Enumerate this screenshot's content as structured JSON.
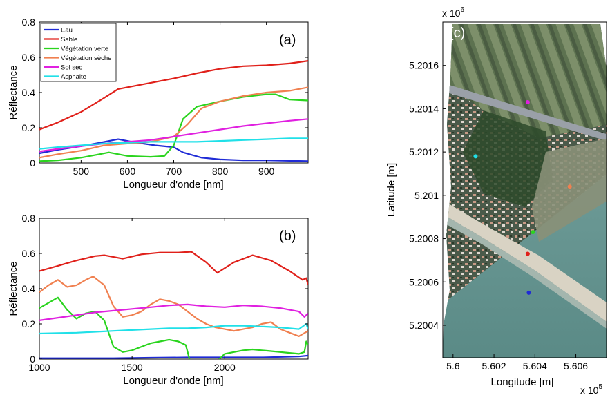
{
  "chart_data": [
    {
      "type": "line",
      "panel_tag": "(a)",
      "xlabel": "Longueur d'onde [nm]",
      "ylabel": "Réflectance",
      "xlim": [
        410,
        990
      ],
      "ylim": [
        0,
        0.8
      ],
      "xticks": [
        500,
        600,
        700,
        800,
        900
      ],
      "yticks": [
        0,
        0.2,
        0.4,
        0.6,
        0.8
      ],
      "legend_position": "top-left",
      "series": [
        {
          "name": "Eau",
          "color": "#1f2bd6",
          "x": [
            410,
            450,
            500,
            550,
            580,
            620,
            660,
            700,
            720,
            760,
            800,
            850,
            900,
            950,
            990
          ],
          "y": [
            0.055,
            0.075,
            0.095,
            0.12,
            0.135,
            0.115,
            0.1,
            0.09,
            0.06,
            0.03,
            0.02,
            0.015,
            0.015,
            0.012,
            0.01
          ]
        },
        {
          "name": "Sable",
          "color": "#e0201a",
          "x": [
            410,
            450,
            500,
            550,
            580,
            620,
            660,
            700,
            750,
            800,
            850,
            900,
            950,
            990
          ],
          "y": [
            0.19,
            0.23,
            0.29,
            0.37,
            0.42,
            0.44,
            0.46,
            0.48,
            0.51,
            0.535,
            0.55,
            0.555,
            0.565,
            0.58
          ]
        },
        {
          "name": "Végétation verte",
          "color": "#2ad41e",
          "x": [
            410,
            450,
            500,
            540,
            560,
            600,
            650,
            680,
            700,
            720,
            750,
            800,
            850,
            900,
            920,
            950,
            990
          ],
          "y": [
            0.01,
            0.015,
            0.03,
            0.05,
            0.06,
            0.04,
            0.035,
            0.04,
            0.1,
            0.25,
            0.32,
            0.35,
            0.375,
            0.39,
            0.39,
            0.36,
            0.355
          ]
        },
        {
          "name": "Végétation sèche",
          "color": "#f08050",
          "x": [
            410,
            450,
            500,
            550,
            600,
            650,
            700,
            730,
            760,
            800,
            850,
            900,
            950,
            990
          ],
          "y": [
            0.03,
            0.05,
            0.07,
            0.1,
            0.11,
            0.12,
            0.15,
            0.22,
            0.31,
            0.35,
            0.38,
            0.4,
            0.41,
            0.43
          ]
        },
        {
          "name": "Sol sec",
          "color": "#e020e0",
          "x": [
            410,
            450,
            500,
            550,
            600,
            650,
            700,
            750,
            800,
            850,
            900,
            950,
            990
          ],
          "y": [
            0.065,
            0.08,
            0.095,
            0.11,
            0.12,
            0.13,
            0.15,
            0.17,
            0.19,
            0.21,
            0.225,
            0.24,
            0.25
          ]
        },
        {
          "name": "Asphalte",
          "color": "#20e0e8",
          "x": [
            410,
            450,
            500,
            550,
            600,
            650,
            700,
            750,
            800,
            850,
            900,
            950,
            990
          ],
          "y": [
            0.08,
            0.09,
            0.1,
            0.11,
            0.115,
            0.12,
            0.12,
            0.12,
            0.125,
            0.13,
            0.135,
            0.14,
            0.14
          ]
        }
      ]
    },
    {
      "type": "line",
      "panel_tag": "(b)",
      "xlabel": "Longueur d'onde [nm]",
      "ylabel": "Réflectance",
      "xlim": [
        1000,
        2450
      ],
      "ylim": [
        0,
        0.8
      ],
      "xticks": [
        1000,
        1500,
        2000
      ],
      "yticks": [
        0,
        0.2,
        0.4,
        0.6,
        0.8
      ],
      "series": [
        {
          "name": "Eau",
          "color": "#1f2bd6",
          "x": [
            1000,
            1200,
            1400,
            1600,
            1800,
            2000,
            2200,
            2400,
            2450
          ],
          "y": [
            0.005,
            0.005,
            0.005,
            0.008,
            0.01,
            0.01,
            0.01,
            0.015,
            0.02
          ]
        },
        {
          "name": "Sable",
          "color": "#e0201a",
          "x": [
            1000,
            1100,
            1200,
            1300,
            1350,
            1450,
            1550,
            1650,
            1750,
            1820,
            1900,
            1960,
            2050,
            2150,
            2250,
            2350,
            2420,
            2440,
            2450
          ],
          "y": [
            0.5,
            0.53,
            0.56,
            0.585,
            0.59,
            0.57,
            0.595,
            0.605,
            0.605,
            0.61,
            0.55,
            0.49,
            0.55,
            0.59,
            0.56,
            0.5,
            0.45,
            0.46,
            0.42
          ]
        },
        {
          "name": "Végétation verte",
          "color": "#2ad41e",
          "x": [
            1000,
            1050,
            1100,
            1150,
            1200,
            1250,
            1300,
            1350,
            1400,
            1450,
            1500,
            1550,
            1600,
            1650,
            1700,
            1750,
            1790,
            1810
          ],
          "y": [
            0.29,
            0.32,
            0.35,
            0.28,
            0.23,
            0.26,
            0.27,
            0.22,
            0.07,
            0.04,
            0.05,
            0.07,
            0.09,
            0.1,
            0.11,
            0.1,
            0.08,
            0.0
          ]
        },
        {
          "name": "Végétation verte (2)",
          "color": "#2ad41e",
          "x": [
            1970,
            2000,
            2050,
            2100,
            2150,
            2200,
            2250,
            2300,
            2350,
            2400,
            2430,
            2440,
            2450
          ],
          "y": [
            0.0,
            0.03,
            0.04,
            0.05,
            0.055,
            0.05,
            0.045,
            0.04,
            0.035,
            0.03,
            0.04,
            0.1,
            0.08
          ]
        },
        {
          "name": "Végétation sèche",
          "color": "#f08050",
          "x": [
            1000,
            1050,
            1100,
            1150,
            1200,
            1250,
            1290,
            1350,
            1400,
            1450,
            1500,
            1550,
            1600,
            1650,
            1700,
            1750,
            1800,
            1850,
            1900,
            1950,
            2000,
            2050,
            2100,
            2150,
            2200,
            2250,
            2300,
            2350,
            2400,
            2450
          ],
          "y": [
            0.38,
            0.42,
            0.45,
            0.41,
            0.42,
            0.45,
            0.47,
            0.42,
            0.3,
            0.24,
            0.25,
            0.27,
            0.31,
            0.34,
            0.33,
            0.31,
            0.27,
            0.23,
            0.2,
            0.18,
            0.17,
            0.16,
            0.17,
            0.18,
            0.2,
            0.21,
            0.17,
            0.15,
            0.13,
            0.16
          ]
        },
        {
          "name": "Sol sec",
          "color": "#e020e0",
          "x": [
            1000,
            1100,
            1200,
            1300,
            1400,
            1500,
            1600,
            1700,
            1800,
            1900,
            2000,
            2100,
            2200,
            2300,
            2400,
            2430,
            2450
          ],
          "y": [
            0.22,
            0.235,
            0.25,
            0.265,
            0.275,
            0.285,
            0.295,
            0.305,
            0.31,
            0.3,
            0.295,
            0.305,
            0.3,
            0.29,
            0.27,
            0.24,
            0.26
          ]
        },
        {
          "name": "Asphalte",
          "color": "#20e0e8",
          "x": [
            1000,
            1100,
            1200,
            1300,
            1400,
            1500,
            1600,
            1700,
            1800,
            1900,
            2000,
            2100,
            2200,
            2300,
            2400,
            2440,
            2450
          ],
          "y": [
            0.145,
            0.148,
            0.15,
            0.155,
            0.16,
            0.165,
            0.17,
            0.175,
            0.175,
            0.18,
            0.19,
            0.19,
            0.185,
            0.18,
            0.17,
            0.2,
            0.17
          ]
        }
      ]
    },
    {
      "type": "scatter",
      "panel_tag": "(c)",
      "xlabel": "Longitude [m]",
      "ylabel": "Latitude [m]",
      "x_multiplier": "x 10",
      "x_exponent": "5",
      "y_multiplier": "x 10",
      "y_exponent": "6",
      "xlim": [
        5.5995,
        5.6075
      ],
      "ylim": [
        5.20025,
        5.2018
      ],
      "xticks": [
        "5.6",
        "5.602",
        "5.604",
        "5.606"
      ],
      "xtick_values": [
        5.6,
        5.602,
        5.604,
        5.606
      ],
      "yticks": [
        "5.2004",
        "5.2006",
        "5.2008",
        "5.201",
        "5.2012",
        "5.2014",
        "5.2016"
      ],
      "ytick_values": [
        5.2004,
        5.2006,
        5.2008,
        5.201,
        5.2012,
        5.2014,
        5.2016
      ],
      "points": [
        {
          "class": "Sol sec",
          "x": 5.60365,
          "y": 5.20143,
          "color": "#e020e0"
        },
        {
          "class": "Asphalte",
          "x": 5.6011,
          "y": 5.20118,
          "color": "#20e0e8"
        },
        {
          "class": "Végétation sèche",
          "x": 5.6057,
          "y": 5.20104,
          "color": "#f08050"
        },
        {
          "class": "Végétation verte",
          "x": 5.6039,
          "y": 5.20083,
          "color": "#2ad41e"
        },
        {
          "class": "Sable",
          "x": 5.60365,
          "y": 5.20073,
          "color": "#e0201a"
        },
        {
          "class": "Eau",
          "x": 5.6037,
          "y": 5.20055,
          "color": "#1f2bd6"
        }
      ]
    }
  ]
}
